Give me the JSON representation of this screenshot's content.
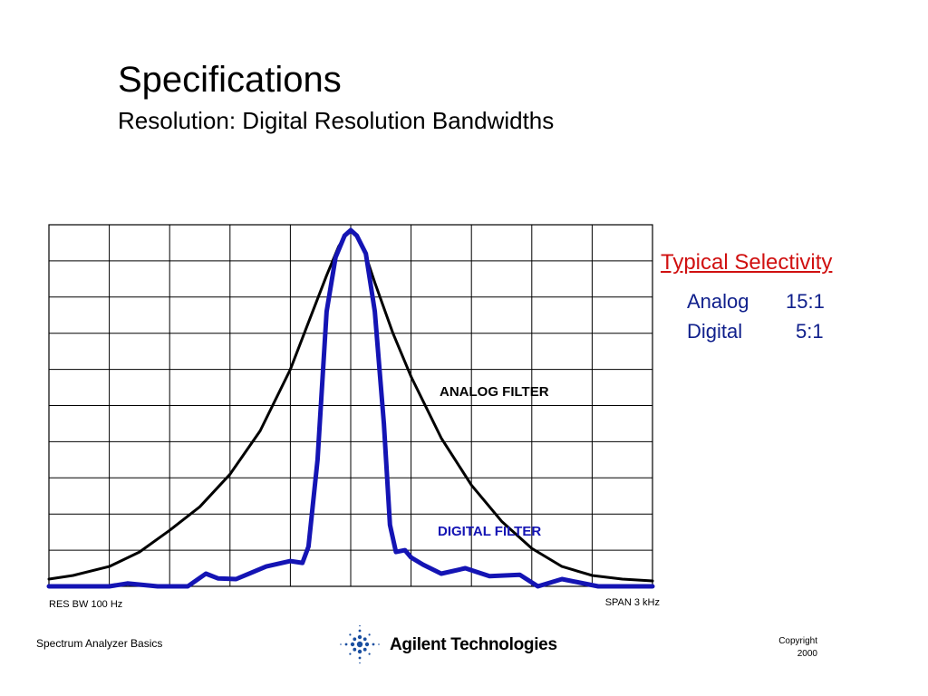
{
  "slide": {
    "title": "Specifications",
    "subtitle": "Resolution: Digital Resolution Bandwidths"
  },
  "chart_data": {
    "type": "line",
    "title": "",
    "xlabel": "",
    "ylabel": "",
    "grid": true,
    "grid_divisions": {
      "x": 10,
      "y": 10
    },
    "x_range": [
      0,
      10
    ],
    "y_range": [
      0,
      10
    ],
    "lower_left_label": "RES BW 100 Hz",
    "lower_right_label": "SPAN 3 kHz",
    "series": [
      {
        "name": "ANALOG FILTER",
        "color": "#000000",
        "x": [
          0,
          0.4,
          1,
          1.5,
          2,
          2.5,
          3,
          3.5,
          4,
          4.3,
          4.6,
          4.8,
          4.95,
          5,
          5.05,
          5.2,
          5.4,
          5.7,
          6,
          6.5,
          7,
          7.5,
          8,
          8.5,
          9,
          9.5,
          10
        ],
        "y": [
          0.2,
          0.3,
          0.55,
          0.95,
          1.55,
          2.2,
          3.1,
          4.3,
          6.0,
          7.3,
          8.6,
          9.4,
          9.8,
          9.85,
          9.8,
          9.4,
          8.4,
          7.0,
          5.8,
          4.1,
          2.8,
          1.8,
          1.05,
          0.55,
          0.3,
          0.2,
          0.15
        ]
      },
      {
        "name": "DIGITAL FILTER",
        "color": "#1414b4",
        "x": [
          0,
          1,
          1.3,
          1.8,
          2.3,
          2.6,
          2.8,
          3.1,
          3.6,
          4.0,
          4.2,
          4.3,
          4.45,
          4.6,
          4.75,
          4.9,
          5.0,
          5.1,
          5.25,
          5.4,
          5.55,
          5.65,
          5.75,
          5.9,
          6.0,
          6.2,
          6.5,
          6.9,
          7.3,
          7.8,
          8.1,
          8.5,
          8.8,
          9.1,
          9.5,
          10
        ],
        "y": [
          0,
          0,
          0.08,
          0,
          0,
          0.35,
          0.22,
          0.2,
          0.55,
          0.7,
          0.65,
          1.1,
          3.5,
          7.6,
          9.1,
          9.7,
          9.85,
          9.7,
          9.2,
          7.6,
          4.5,
          1.7,
          0.95,
          1.0,
          0.8,
          0.6,
          0.35,
          0.5,
          0.28,
          0.32,
          0.0,
          0.2,
          0.1,
          0.0,
          0.0,
          0.0
        ]
      }
    ],
    "annotations": [
      {
        "text": "ANALOG FILTER",
        "color": "#000000"
      },
      {
        "text": "DIGITAL FILTER",
        "color": "#1414b4"
      }
    ]
  },
  "selectivity": {
    "heading": "Typical Selectivity",
    "rows": [
      {
        "label": "Analog",
        "value": "15:1"
      },
      {
        "label": "Digital",
        "value": "5:1"
      }
    ]
  },
  "footer": {
    "left_text": "Spectrum Analyzer Basics",
    "logo_text": "Agilent Technologies",
    "copyright_line1": "Copyright",
    "copyright_line2": "2000"
  }
}
